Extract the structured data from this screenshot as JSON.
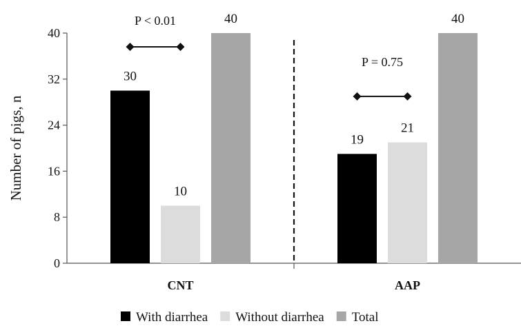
{
  "chart_data": {
    "type": "bar",
    "title": "",
    "xlabel": "",
    "ylabel": "Number of pigs, n",
    "ylim": [
      0,
      40
    ],
    "yticks": [
      0,
      8,
      16,
      24,
      32,
      40
    ],
    "categories": [
      "CNT",
      "AAP"
    ],
    "series": [
      {
        "name": "With diarrhea",
        "values": [
          30,
          19
        ],
        "color": "#000000"
      },
      {
        "name": "Without diarrhea",
        "values": [
          10,
          21
        ],
        "color": "#dcdcdc"
      },
      {
        "name": "Total",
        "values": [
          40,
          40
        ],
        "color": "#a6a6a6"
      }
    ],
    "annotations": [
      {
        "category": "CNT",
        "text": "P < 0.01",
        "line_y": 37.6
      },
      {
        "category": "AAP",
        "text": "P = 0.75",
        "line_y": 29.0
      }
    ],
    "legend_position": "bottom",
    "grid": false
  }
}
